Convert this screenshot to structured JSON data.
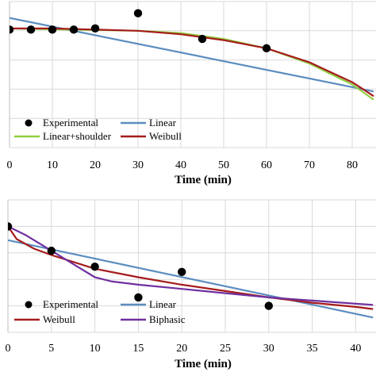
{
  "chart_data": [
    {
      "type": "line",
      "xlabel": "Time (min)",
      "xlim": [
        0,
        85
      ],
      "ylim": [
        0,
        1.25
      ],
      "x_ticks": [
        "0",
        "10",
        "20",
        "30",
        "40",
        "50",
        "60",
        "70",
        "80"
      ],
      "x_tick_values": [
        0,
        10,
        20,
        30,
        40,
        50,
        60,
        70,
        80
      ],
      "y_gridlines": [
        0,
        0.25,
        0.5,
        0.75,
        1.0,
        1.25
      ],
      "grid": true,
      "legend_position": "bottom-left",
      "legend": [
        "Experimental",
        "Linear",
        "Linear+shoulder",
        "Weibull"
      ],
      "series": [
        {
          "name": "Experimental",
          "kind": "points",
          "color": "#000000",
          "x": [
            0,
            5,
            10,
            15,
            20,
            30,
            45,
            60
          ],
          "y": [
            1.01,
            1.01,
            1.01,
            1.01,
            1.02,
            1.15,
            0.93,
            0.85
          ]
        },
        {
          "name": "Linear",
          "kind": "line",
          "color": "#5b8dbf",
          "x": [
            0,
            85
          ],
          "y": [
            1.11,
            0.48
          ]
        },
        {
          "name": "Linear+shoulder",
          "kind": "line",
          "color": "#8fce3f",
          "x": [
            0,
            30,
            40,
            50,
            60,
            70,
            80,
            85
          ],
          "y": [
            1.02,
            1.0,
            0.98,
            0.93,
            0.85,
            0.72,
            0.54,
            0.41
          ]
        },
        {
          "name": "Weibull",
          "kind": "line",
          "color": "#a51c1c",
          "x": [
            0,
            10,
            20,
            30,
            40,
            50,
            60,
            70,
            80,
            85
          ],
          "y": [
            1.02,
            1.02,
            1.01,
            1.0,
            0.97,
            0.92,
            0.85,
            0.73,
            0.56,
            0.44
          ]
        }
      ]
    },
    {
      "type": "line",
      "xlabel": "Time (min)",
      "xlim": [
        0,
        42
      ],
      "ylim": [
        0,
        1.25
      ],
      "x_ticks": [
        "0",
        "5",
        "10",
        "15",
        "20",
        "25",
        "30",
        "35",
        "40"
      ],
      "x_tick_values": [
        0,
        5,
        10,
        15,
        20,
        25,
        30,
        35,
        40
      ],
      "y_gridlines": [
        0,
        0.25,
        0.5,
        0.75,
        1.0,
        1.25
      ],
      "grid": true,
      "legend_position": "bottom-left",
      "legend": [
        "Experimental",
        "Linear",
        "Weibull",
        "Biphasic"
      ],
      "series": [
        {
          "name": "Experimental",
          "kind": "points",
          "color": "#000000",
          "x": [
            0,
            5,
            10,
            15,
            20,
            30
          ],
          "y": [
            1.0,
            0.77,
            0.62,
            0.33,
            0.57,
            0.25
          ]
        },
        {
          "name": "Linear",
          "kind": "line",
          "color": "#5b8dbf",
          "x": [
            0,
            42
          ],
          "y": [
            0.87,
            0.14
          ]
        },
        {
          "name": "Weibull",
          "kind": "line",
          "color": "#a51c1c",
          "x": [
            0,
            1,
            3,
            5,
            10,
            15,
            20,
            25,
            30,
            35,
            40,
            42
          ],
          "y": [
            1.0,
            0.88,
            0.79,
            0.73,
            0.6,
            0.52,
            0.45,
            0.39,
            0.33,
            0.28,
            0.24,
            0.22
          ]
        },
        {
          "name": "Biphasic",
          "kind": "line",
          "color": "#7030a0",
          "x": [
            0,
            2,
            5,
            8,
            10,
            12,
            15,
            20,
            25,
            30,
            35,
            40,
            42
          ],
          "y": [
            1.0,
            0.92,
            0.77,
            0.62,
            0.52,
            0.48,
            0.45,
            0.41,
            0.37,
            0.33,
            0.3,
            0.27,
            0.26
          ]
        }
      ]
    }
  ]
}
